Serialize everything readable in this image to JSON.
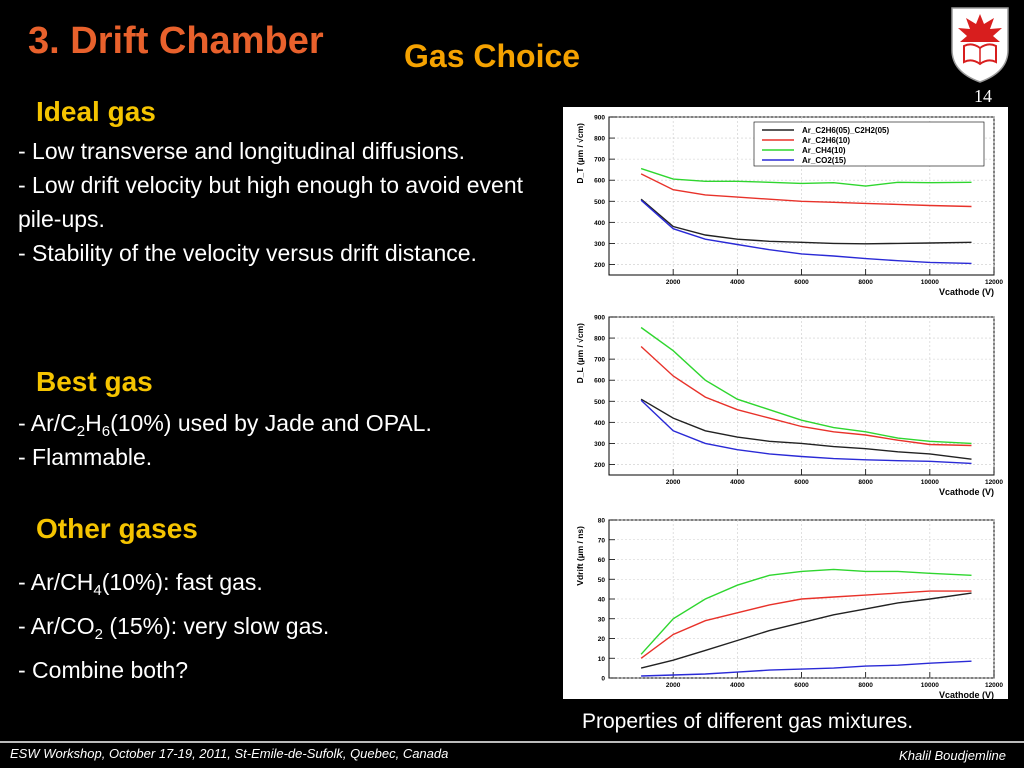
{
  "slide": {
    "title": "3. Drift Chamber",
    "subtitle": "Gas Choice",
    "page_number": "14",
    "logo_icon": "university-shield-logo"
  },
  "ideal_gas": {
    "heading": "Ideal gas",
    "items": [
      "- Low transverse and longitudinal diffusions.",
      "- Low drift velocity but high enough to avoid event pile-ups.",
      "- Stability of the velocity versus drift distance."
    ]
  },
  "best_gas": {
    "heading": "Best gas",
    "line1": {
      "pre": "- Ar/C",
      "sub1": "2",
      "mid": "H",
      "sub2": "6",
      "post": "(10%) used by Jade and OPAL."
    },
    "line2": "- Flammable."
  },
  "other_gases": {
    "heading": "Other gases",
    "line1": {
      "pre": "- Ar/CH",
      "sub": "4",
      "post": "(10%): fast gas."
    },
    "line2": {
      "pre": "- Ar/CO",
      "sub": "2",
      "post": " (15%): very slow gas."
    },
    "line3": "- Combine both?"
  },
  "caption": "Properties of different gas mixtures.",
  "footer": {
    "left": "ESW Workshop, October 17-19, 2011, St-Emile-de-Sufolk, Quebec, Canada",
    "right": "Khalil Boudjemline"
  },
  "colors": {
    "title": "#e8612c",
    "subtitle": "#f5a200",
    "heading": "#f5c400",
    "series": [
      "#222222",
      "#e8322a",
      "#2fd62f",
      "#2a2ad6"
    ]
  },
  "chart_data": [
    {
      "type": "line",
      "ylabel": "D_T (µm / √cm)",
      "xlabel": "Vcathode (V)",
      "xlim": [
        0,
        12000
      ],
      "ylim": [
        150,
        900
      ],
      "xticks": [
        2000,
        4000,
        6000,
        8000,
        10000,
        12000
      ],
      "yticks": [
        200,
        300,
        400,
        500,
        600,
        700,
        800,
        900
      ],
      "grid": true,
      "legend": "top-right",
      "x": [
        1000,
        2000,
        3000,
        4000,
        5000,
        6000,
        7000,
        8000,
        9000,
        10000,
        11300
      ],
      "series": [
        {
          "name": "Ar_C2H6(05)_C2H2(05)",
          "values": [
            510,
            380,
            340,
            320,
            310,
            305,
            300,
            298,
            300,
            302,
            305
          ]
        },
        {
          "name": "Ar_C2H6(10)",
          "values": [
            630,
            555,
            530,
            520,
            510,
            500,
            495,
            490,
            485,
            480,
            475
          ]
        },
        {
          "name": "Ar_CH4(10)",
          "values": [
            655,
            605,
            595,
            595,
            590,
            585,
            588,
            572,
            590,
            588,
            590
          ]
        },
        {
          "name": "Ar_CO2(15)",
          "values": [
            505,
            370,
            320,
            295,
            270,
            250,
            240,
            228,
            218,
            210,
            205
          ]
        }
      ]
    },
    {
      "type": "line",
      "ylabel": "D_L (µm / √cm)",
      "xlabel": "Vcathode (V)",
      "xlim": [
        0,
        12000
      ],
      "ylim": [
        150,
        900
      ],
      "xticks": [
        2000,
        4000,
        6000,
        8000,
        10000,
        12000
      ],
      "yticks": [
        200,
        300,
        400,
        500,
        600,
        700,
        800,
        900
      ],
      "grid": true,
      "x": [
        1000,
        2000,
        3000,
        4000,
        5000,
        6000,
        7000,
        8000,
        9000,
        10000,
        11300
      ],
      "series": [
        {
          "name": "Ar_C2H6(05)_C2H2(05)",
          "values": [
            510,
            420,
            360,
            330,
            310,
            300,
            285,
            275,
            260,
            250,
            225
          ]
        },
        {
          "name": "Ar_C2H6(10)",
          "values": [
            760,
            620,
            520,
            460,
            420,
            380,
            355,
            340,
            315,
            295,
            290
          ]
        },
        {
          "name": "Ar_CH4(10)",
          "values": [
            850,
            740,
            600,
            510,
            460,
            410,
            375,
            355,
            325,
            310,
            300
          ]
        },
        {
          "name": "Ar_CO2(15)",
          "values": [
            505,
            360,
            300,
            270,
            250,
            238,
            228,
            222,
            218,
            215,
            205
          ]
        }
      ]
    },
    {
      "type": "line",
      "ylabel": "Vdrift (µm / ns)",
      "xlabel": "Vcathode (V)",
      "xlim": [
        0,
        12000
      ],
      "ylim": [
        0,
        80
      ],
      "xticks": [
        2000,
        4000,
        6000,
        8000,
        10000,
        12000
      ],
      "yticks": [
        0,
        10,
        20,
        30,
        40,
        50,
        60,
        70,
        80
      ],
      "grid": true,
      "x": [
        1000,
        2000,
        3000,
        4000,
        5000,
        6000,
        7000,
        8000,
        9000,
        10000,
        11300
      ],
      "series": [
        {
          "name": "Ar_C2H6(05)_C2H2(05)",
          "values": [
            5,
            9,
            14,
            19,
            24,
            28,
            32,
            35,
            38,
            40,
            43
          ]
        },
        {
          "name": "Ar_C2H6(10)",
          "values": [
            10,
            22,
            29,
            33,
            37,
            40,
            41,
            42,
            43,
            44,
            44
          ]
        },
        {
          "name": "Ar_CH4(10)",
          "values": [
            12,
            30,
            40,
            47,
            52,
            54,
            55,
            54,
            54,
            53,
            52
          ]
        },
        {
          "name": "Ar_CO2(15)",
          "values": [
            1,
            1.5,
            2,
            3,
            4,
            4.5,
            5,
            6,
            6.5,
            7.5,
            8.5
          ]
        }
      ]
    }
  ]
}
